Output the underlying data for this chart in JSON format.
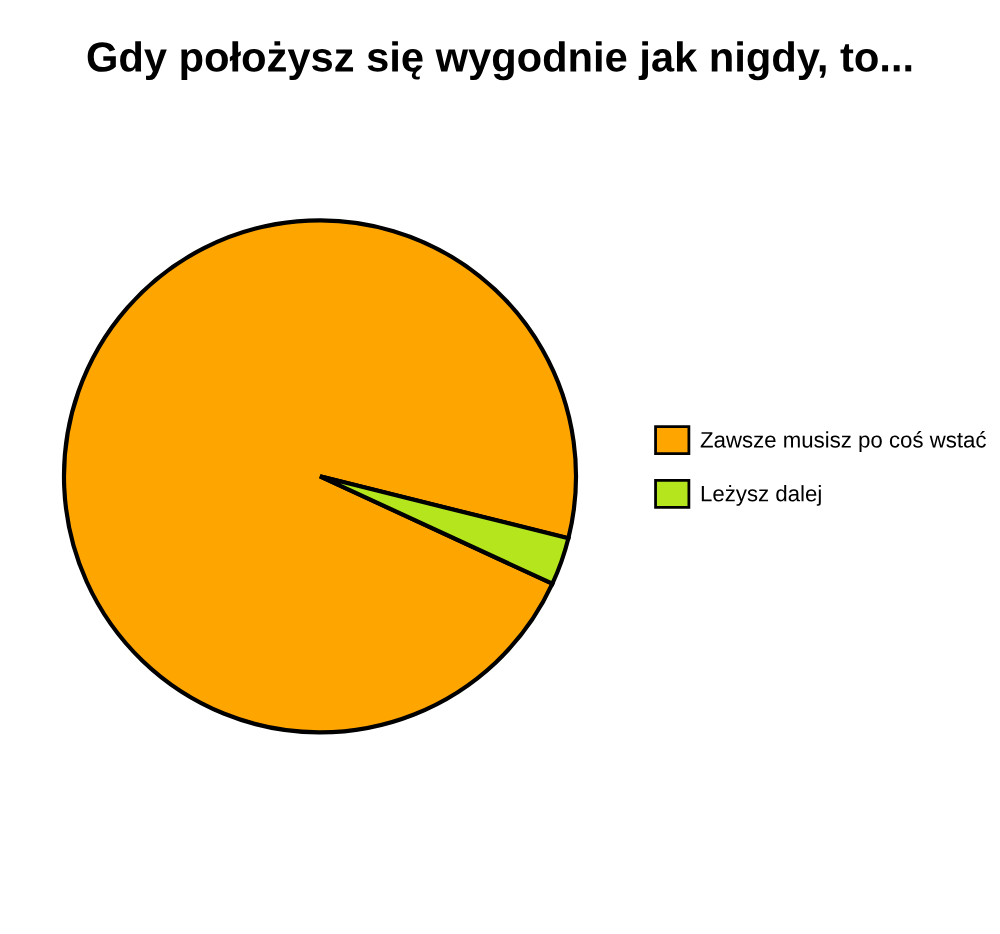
{
  "chart_data": {
    "type": "pie",
    "title": "Gdy położysz się wygodnie jak nigdy, to...",
    "categories": [
      "Zawsze musisz po coś wstać",
      "Leżysz dalej"
    ],
    "values": [
      97,
      3
    ],
    "colors": [
      "#ffa500",
      "#b5e61d"
    ],
    "legend": "right"
  }
}
